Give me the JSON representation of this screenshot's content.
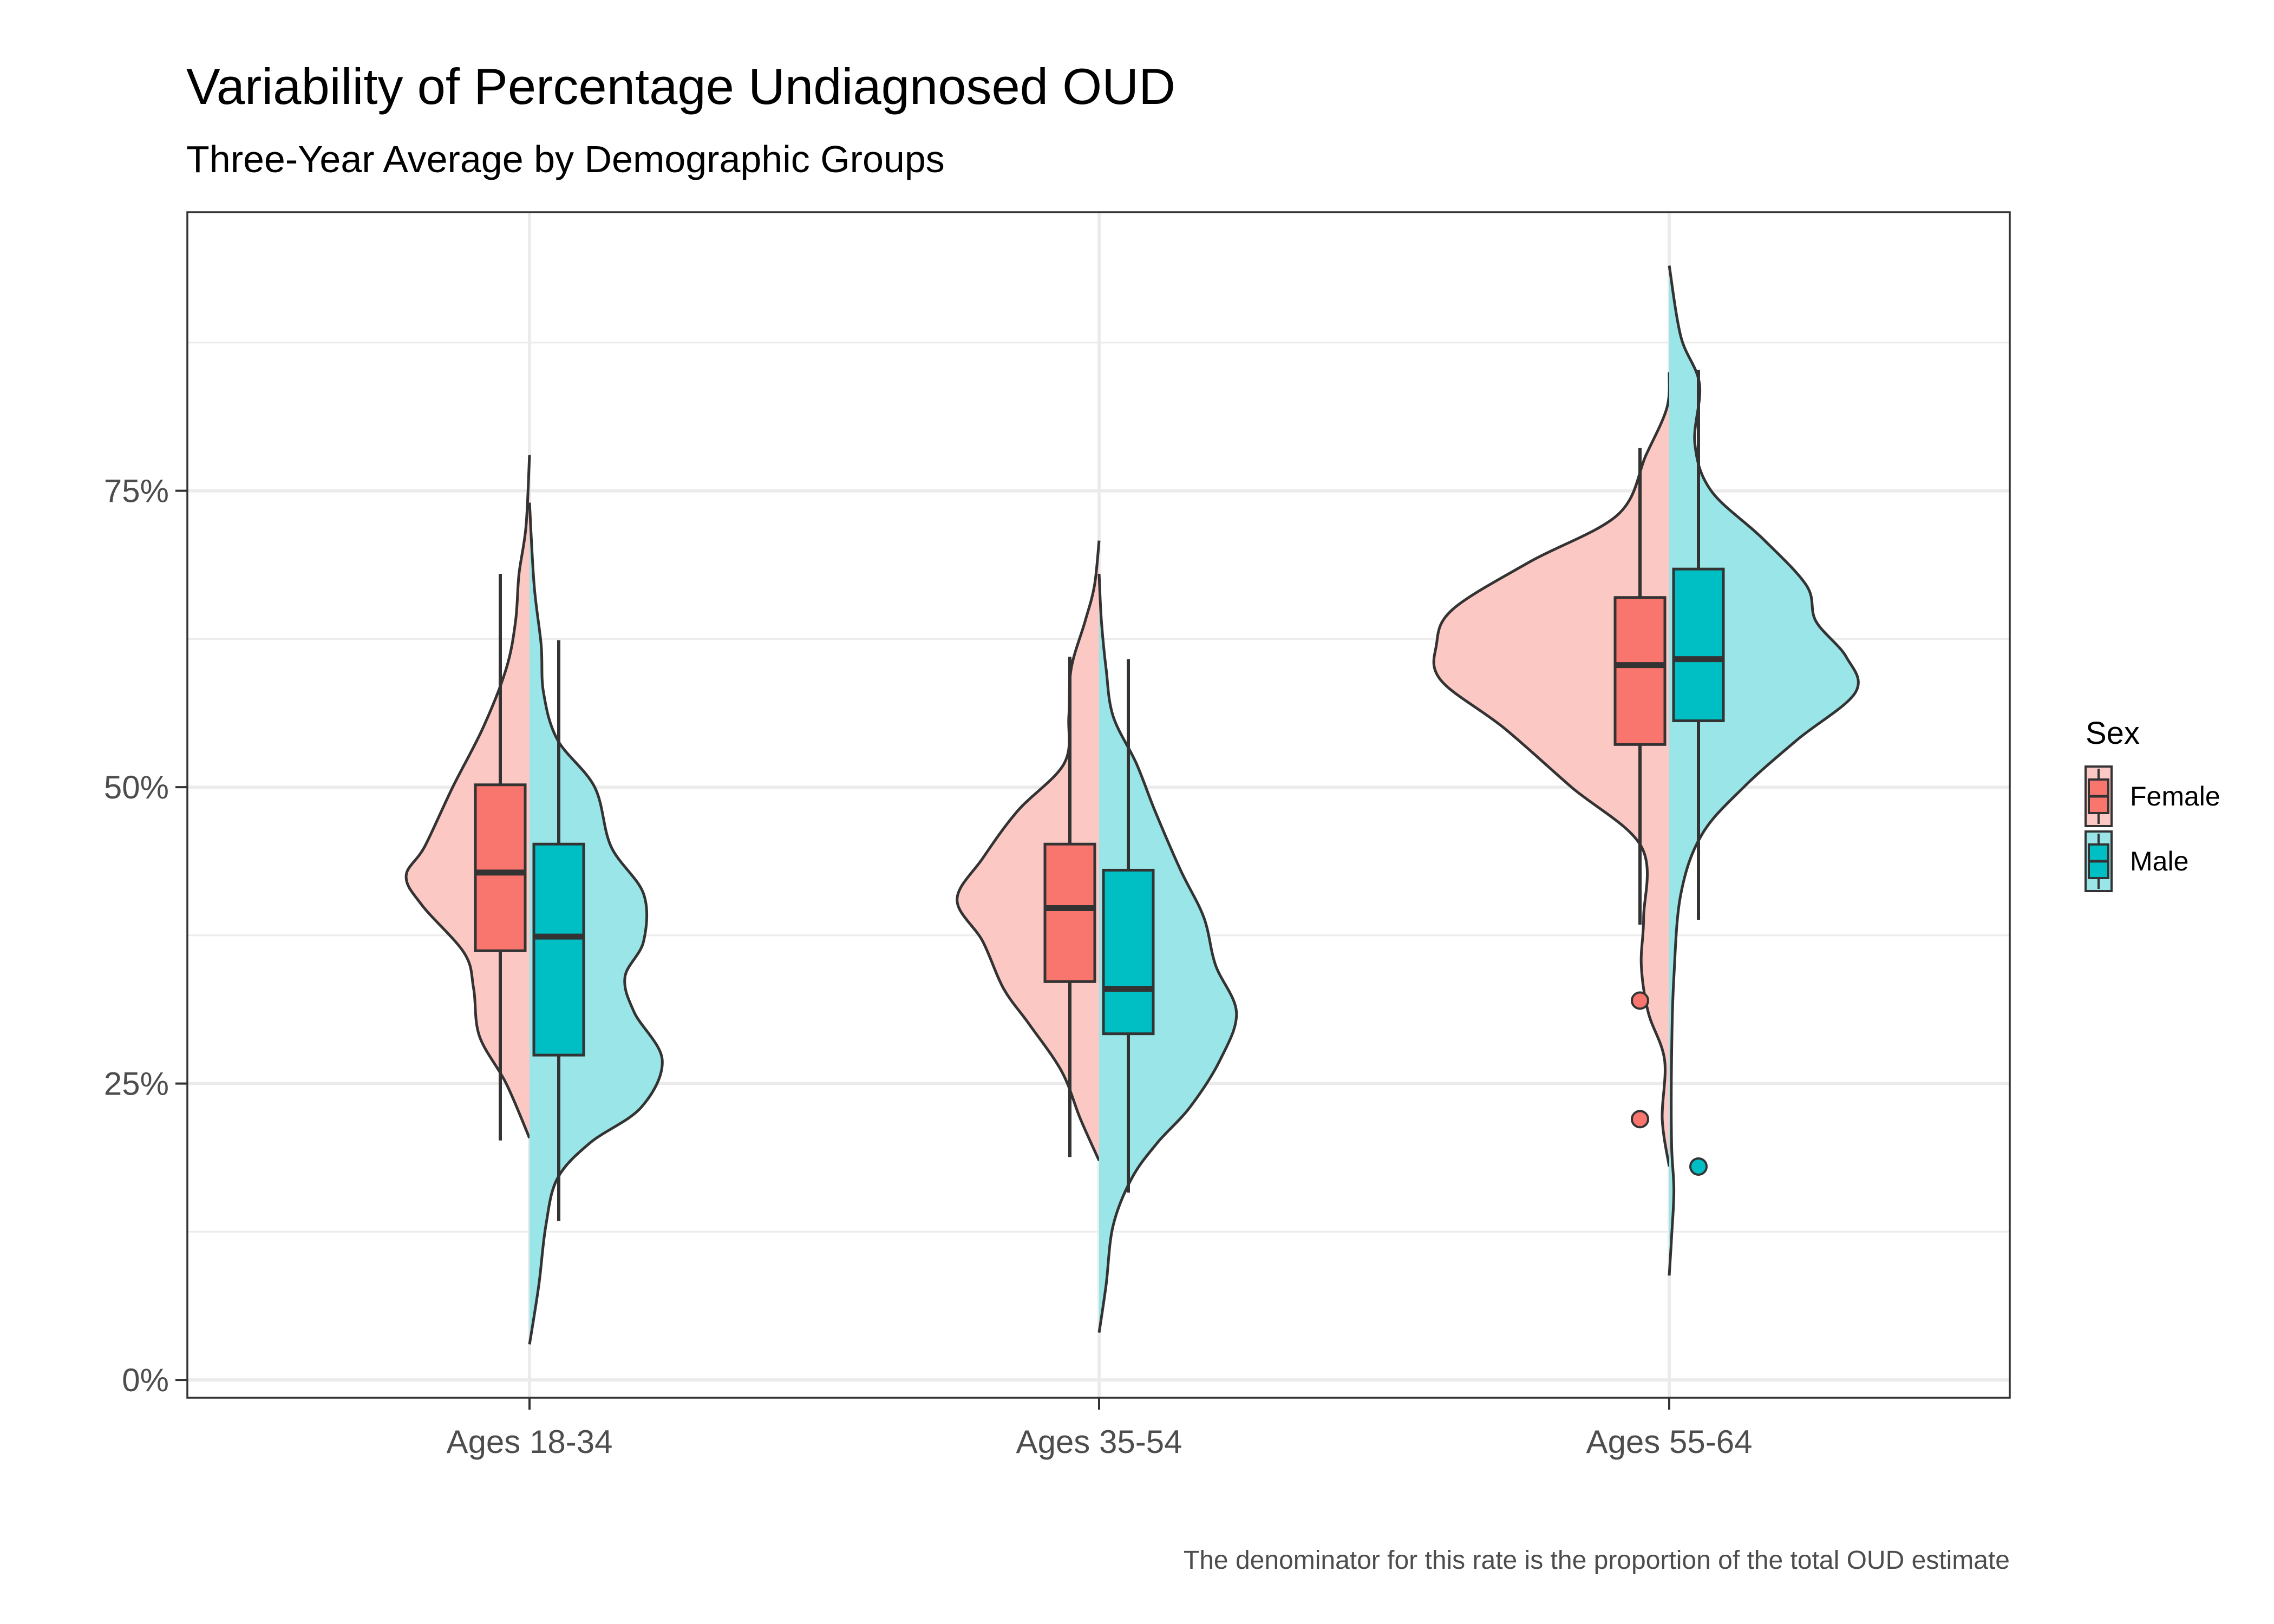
{
  "chart_data": {
    "type": "violin",
    "title": "Variability of Percentage Undiagnosed OUD",
    "subtitle": "Three-Year Average by Demographic Groups",
    "caption": "The denominator for this rate is the proportion of the total OUD estimate",
    "xlabel": "",
    "ylabel": "",
    "categories": [
      "Ages 18-34",
      "Ages 35-54",
      "Ages 55-64"
    ],
    "y_tick_values": [
      0,
      25,
      50,
      75
    ],
    "y_tick_labels": [
      "0%",
      "25%",
      "50%",
      "75%"
    ],
    "ylim": [
      -1.5,
      98.5
    ],
    "grid": true,
    "legend": {
      "title": "Sex",
      "position": "right",
      "entries": [
        {
          "name": "Female",
          "box_color": "#F8766D",
          "violin_color": "#FBC8C4"
        },
        {
          "name": "Male",
          "box_color": "#00BFC4",
          "violin_color": "#9AE5E7"
        }
      ]
    },
    "series": [
      {
        "name": "Female",
        "groups": [
          {
            "category": "Ages 18-34",
            "violin_range": [
              20.4,
              78.0
            ],
            "density": [
              [
                20.4,
                0.0
              ],
              [
                25,
                0.1
              ],
              [
                29,
                0.215
              ],
              [
                33,
                0.24
              ],
              [
                36,
                0.28
              ],
              [
                40,
                0.46
              ],
              [
                42.5,
                0.53
              ],
              [
                45,
                0.45
              ],
              [
                50,
                0.33
              ],
              [
                55,
                0.2
              ],
              [
                60,
                0.1
              ],
              [
                64,
                0.06
              ],
              [
                68,
                0.045
              ],
              [
                72,
                0.015
              ],
              [
                78,
                0.0
              ]
            ],
            "box": {
              "whisker_low": 20.2,
              "q1": 36.2,
              "median": 42.8,
              "q3": 50.2,
              "whisker_high": 68.0
            },
            "outliers": []
          },
          {
            "category": "Ages 35-54",
            "violin_range": [
              18.5,
              70.8
            ],
            "density": [
              [
                18.5,
                0.0
              ],
              [
                22,
                0.08
              ],
              [
                26,
                0.16
              ],
              [
                30,
                0.3
              ],
              [
                33,
                0.41
              ],
              [
                37,
                0.5
              ],
              [
                40.5,
                0.61
              ],
              [
                44,
                0.5
              ],
              [
                48,
                0.35
              ],
              [
                52,
                0.15
              ],
              [
                56,
                0.13
              ],
              [
                60,
                0.12
              ],
              [
                64,
                0.06
              ],
              [
                67,
                0.02
              ],
              [
                70.8,
                0.0
              ]
            ],
            "box": {
              "whisker_low": 18.8,
              "q1": 33.6,
              "median": 39.8,
              "q3": 45.2,
              "whisker_high": 61.0
            },
            "outliers": []
          },
          {
            "category": "Ages 55-64",
            "violin_range": [
              18.0,
              85.0
            ],
            "density": [
              [
                18.0,
                0.0
              ],
              [
                22,
                0.03
              ],
              [
                27,
                0.02
              ],
              [
                31,
                0.09
              ],
              [
                35,
                0.12
              ],
              [
                39,
                0.11
              ],
              [
                45,
                0.12
              ],
              [
                50,
                0.42
              ],
              [
                55,
                0.71
              ],
              [
                59,
                0.98
              ],
              [
                62,
                1.0
              ],
              [
                65,
                0.93
              ],
              [
                69,
                0.6
              ],
              [
                73,
                0.22
              ],
              [
                78,
                0.1
              ],
              [
                82,
                0.01
              ],
              [
                85,
                0.0
              ]
            ],
            "box": {
              "whisker_low": 38.4,
              "q1": 53.6,
              "median": 60.3,
              "q3": 66.0,
              "whisker_high": 78.6
            },
            "outliers": [
              32.0,
              22.0
            ]
          }
        ]
      },
      {
        "name": "Male",
        "groups": [
          {
            "category": "Ages 18-34",
            "violin_range": [
              3.0,
              74.0
            ],
            "density": [
              [
                3.0,
                0.0
              ],
              [
                8,
                0.04
              ],
              [
                13,
                0.07
              ],
              [
                17,
                0.12
              ],
              [
                20,
                0.26
              ],
              [
                23,
                0.48
              ],
              [
                27,
                0.57
              ],
              [
                31,
                0.45
              ],
              [
                34,
                0.41
              ],
              [
                37,
                0.49
              ],
              [
                41,
                0.49
              ],
              [
                45,
                0.35
              ],
              [
                50,
                0.28
              ],
              [
                54,
                0.12
              ],
              [
                58,
                0.06
              ],
              [
                62,
                0.05
              ],
              [
                67,
                0.02
              ],
              [
                74,
                0.0
              ]
            ],
            "box": {
              "whisker_low": 13.4,
              "q1": 27.4,
              "median": 37.4,
              "q3": 45.2,
              "whisker_high": 62.4
            },
            "outliers": []
          },
          {
            "category": "Ages 35-54",
            "violin_range": [
              4.0,
              68.0
            ],
            "density": [
              [
                4.0,
                0.0
              ],
              [
                8,
                0.03
              ],
              [
                13,
                0.06
              ],
              [
                17,
                0.14
              ],
              [
                20,
                0.25
              ],
              [
                23,
                0.39
              ],
              [
                27,
                0.52
              ],
              [
                31,
                0.59
              ],
              [
                35,
                0.5
              ],
              [
                39,
                0.45
              ],
              [
                43,
                0.35
              ],
              [
                48,
                0.24
              ],
              [
                52,
                0.16
              ],
              [
                56,
                0.06
              ],
              [
                60,
                0.03
              ],
              [
                64,
                0.01
              ],
              [
                68,
                0.0
              ]
            ],
            "box": {
              "whisker_low": 15.8,
              "q1": 29.2,
              "median": 33.0,
              "q3": 43.0,
              "whisker_high": 60.8
            },
            "outliers": []
          },
          {
            "category": "Ages 55-64",
            "violin_range": [
              8.8,
              94.0
            ],
            "density": [
              [
                8.8,
                0.0
              ],
              [
                12,
                0.01
              ],
              [
                16,
                0.02
              ],
              [
                20,
                0.01
              ],
              [
                27,
                0.01
              ],
              [
                34,
                0.02
              ],
              [
                41,
                0.05
              ],
              [
                46,
                0.14
              ],
              [
                50,
                0.32
              ],
              [
                54,
                0.55
              ],
              [
                58,
                0.8
              ],
              [
                61,
                0.76
              ],
              [
                64,
                0.63
              ],
              [
                67,
                0.59
              ],
              [
                71,
                0.4
              ],
              [
                75,
                0.18
              ],
              [
                79,
                0.11
              ],
              [
                84,
                0.13
              ],
              [
                88,
                0.05
              ],
              [
                94,
                0.0
              ]
            ],
            "box": {
              "whisker_low": 38.8,
              "q1": 55.6,
              "median": 60.8,
              "q3": 68.4,
              "whisker_high": 85.2
            },
            "outliers": [
              18.0
            ]
          }
        ]
      }
    ]
  }
}
